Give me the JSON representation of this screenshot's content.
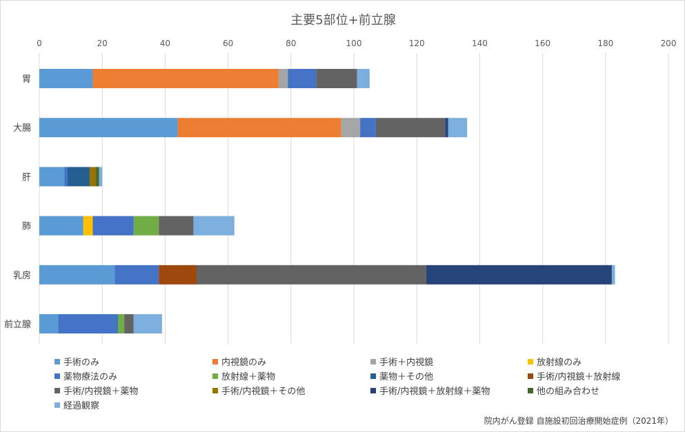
{
  "chart_data": {
    "type": "bar",
    "orientation": "horizontal",
    "stacked": true,
    "title": "主要5部位+前立腺",
    "xlim": [
      0,
      200
    ],
    "xticks": [
      0,
      20,
      40,
      60,
      80,
      100,
      120,
      140,
      160,
      180,
      200
    ],
    "x_axis_position": "top",
    "grid": true,
    "legend_position": "bottom",
    "categories": [
      "胃",
      "大腸",
      "肝",
      "肺",
      "乳房",
      "前立腺"
    ],
    "series": [
      {
        "name": "手術のみ",
        "color": "#5B9BD5",
        "values": [
          17,
          44,
          8,
          14,
          24,
          6
        ]
      },
      {
        "name": "内視鏡のみ",
        "color": "#ED7D31",
        "values": [
          59,
          52,
          0,
          0,
          0,
          0
        ]
      },
      {
        "name": "手術＋内視鏡",
        "color": "#A5A5A5",
        "values": [
          3,
          6,
          0,
          0,
          0,
          0
        ]
      },
      {
        "name": "放射線のみ",
        "color": "#FFC000",
        "values": [
          0,
          0,
          0,
          3,
          0,
          0
        ]
      },
      {
        "name": "薬物療法のみ",
        "color": "#4472C4",
        "values": [
          9,
          5,
          1,
          13,
          14,
          19
        ]
      },
      {
        "name": "放射線＋薬物",
        "color": "#70AD47",
        "values": [
          0,
          0,
          0,
          8,
          0,
          2
        ]
      },
      {
        "name": "薬物＋その他",
        "color": "#255E91",
        "values": [
          0,
          0,
          7,
          0,
          0,
          0
        ]
      },
      {
        "name": "手術/内視鏡＋放射線",
        "color": "#9E480E",
        "values": [
          0,
          0,
          0,
          0,
          12,
          0
        ]
      },
      {
        "name": "手術/内視鏡＋薬物",
        "color": "#636363",
        "values": [
          13,
          22,
          0,
          11,
          73,
          3
        ]
      },
      {
        "name": "手術/内視鏡＋その他",
        "color": "#997300",
        "values": [
          0,
          0,
          2,
          0,
          0,
          0
        ]
      },
      {
        "name": "手術/内視鏡＋放射線＋薬物",
        "color": "#264478",
        "values": [
          0,
          1,
          0,
          0,
          59,
          0
        ]
      },
      {
        "name": "他の組み合わせ",
        "color": "#43682B",
        "values": [
          0,
          0,
          1,
          0,
          0,
          0
        ]
      },
      {
        "name": "経過観察",
        "color": "#7CAFDD",
        "values": [
          4,
          6,
          1,
          13,
          1,
          9
        ]
      }
    ]
  },
  "source_note": "院内がん登録 自施設初回治療開始症例（2021年）"
}
